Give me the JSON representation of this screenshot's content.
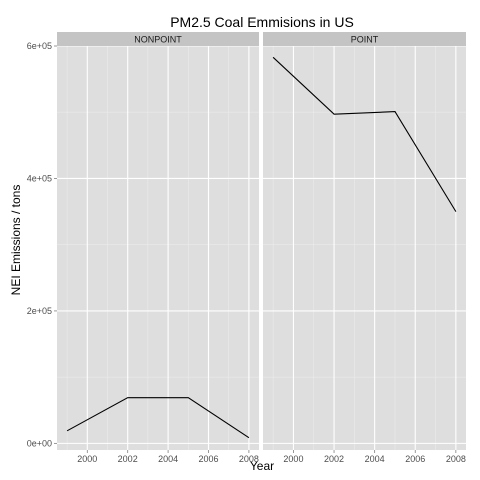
{
  "chart_data": {
    "type": "line",
    "title": "PM2.5 Coal Emmisions in US",
    "xlabel": "Year",
    "ylabel": "NEI Emissions / tons",
    "xlim": [
      1998.5,
      2008.5
    ],
    "ylim": [
      -10000,
      600000
    ],
    "x_ticks": [
      2000,
      2002,
      2004,
      2006,
      2008
    ],
    "x_tick_labels": [
      "2000",
      "2002",
      "2004",
      "2006",
      "2008"
    ],
    "y_ticks": [
      0,
      200000,
      400000,
      600000
    ],
    "y_tick_labels": [
      "0e+00",
      "2e+05",
      "4e+05",
      "6e+05"
    ],
    "grid": true,
    "facets": [
      {
        "label": "NONPOINT",
        "x": [
          1999,
          2002,
          2005,
          2008
        ],
        "y": [
          19000,
          69000,
          69000,
          8500
        ]
      },
      {
        "label": "POINT",
        "x": [
          1999,
          2002,
          2005,
          2008
        ],
        "y": [
          583000,
          497000,
          501000,
          350000
        ]
      }
    ],
    "colors": {
      "panel_background": "#dedede",
      "strip_background": "#c4c4c4",
      "grid_major": "#ffffff",
      "grid_minor": "#ebebeb",
      "line": "#000000",
      "tick_text": "#4d4d4d"
    }
  }
}
